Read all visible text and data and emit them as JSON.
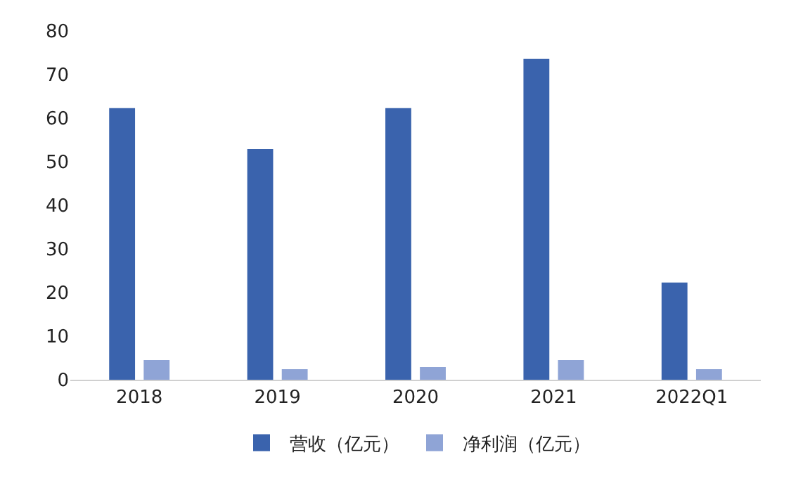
{
  "chart_data": {
    "type": "bar",
    "categories": [
      "2018",
      "2019",
      "2020",
      "2021",
      "2022Q1"
    ],
    "series": [
      {
        "name": "营收（亿元）",
        "color": "#3a63ad",
        "values": [
          62.3,
          52.9,
          62.3,
          73.6,
          22.3
        ]
      },
      {
        "name": "净利润（亿元）",
        "color": "#8fa4d6",
        "values": [
          4.5,
          2.4,
          2.9,
          4.5,
          2.4
        ]
      }
    ],
    "ylim": [
      0,
      80
    ],
    "yticks": [
      0,
      10,
      20,
      30,
      40,
      50,
      60,
      70,
      80
    ],
    "grid": false,
    "legend": "bottom"
  }
}
